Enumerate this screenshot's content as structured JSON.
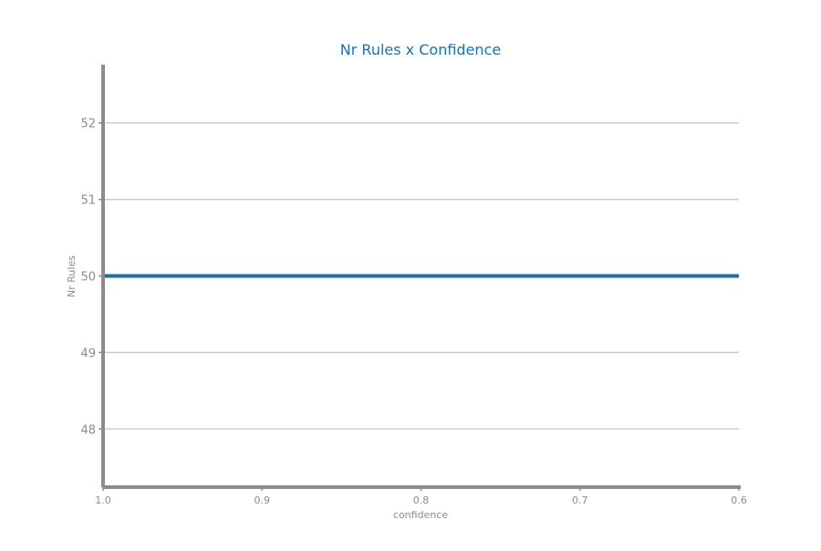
{
  "chart_data": {
    "type": "line",
    "title": "Nr Rules x Confidence",
    "xlabel": "confidence",
    "ylabel": "Nr Rules",
    "x": [
      1.0,
      0.9,
      0.8,
      0.7,
      0.6
    ],
    "series": [
      {
        "values": [
          50,
          50,
          50,
          50,
          50
        ]
      }
    ],
    "xlim": [
      1.0,
      0.6
    ],
    "ylim": [
      47.24,
      52.76
    ],
    "x_ticks": [
      1.0,
      0.9,
      0.8,
      0.7,
      0.6
    ],
    "x_tick_labels": [
      "1.0",
      "0.9",
      "0.8",
      "0.7",
      "0.6"
    ],
    "y_ticks": [
      48,
      49,
      50,
      51,
      52
    ],
    "y_tick_labels": [
      "48",
      "49",
      "50",
      "51",
      "52"
    ],
    "x_reversed": true,
    "grid": "horizontal",
    "legend": "none",
    "colors": {
      "title": "#1a73b0",
      "line": "#1a6fa6",
      "axis": "#8c8c8c",
      "grid": "#cccccc",
      "tick_text": "#8c8c8c"
    }
  }
}
